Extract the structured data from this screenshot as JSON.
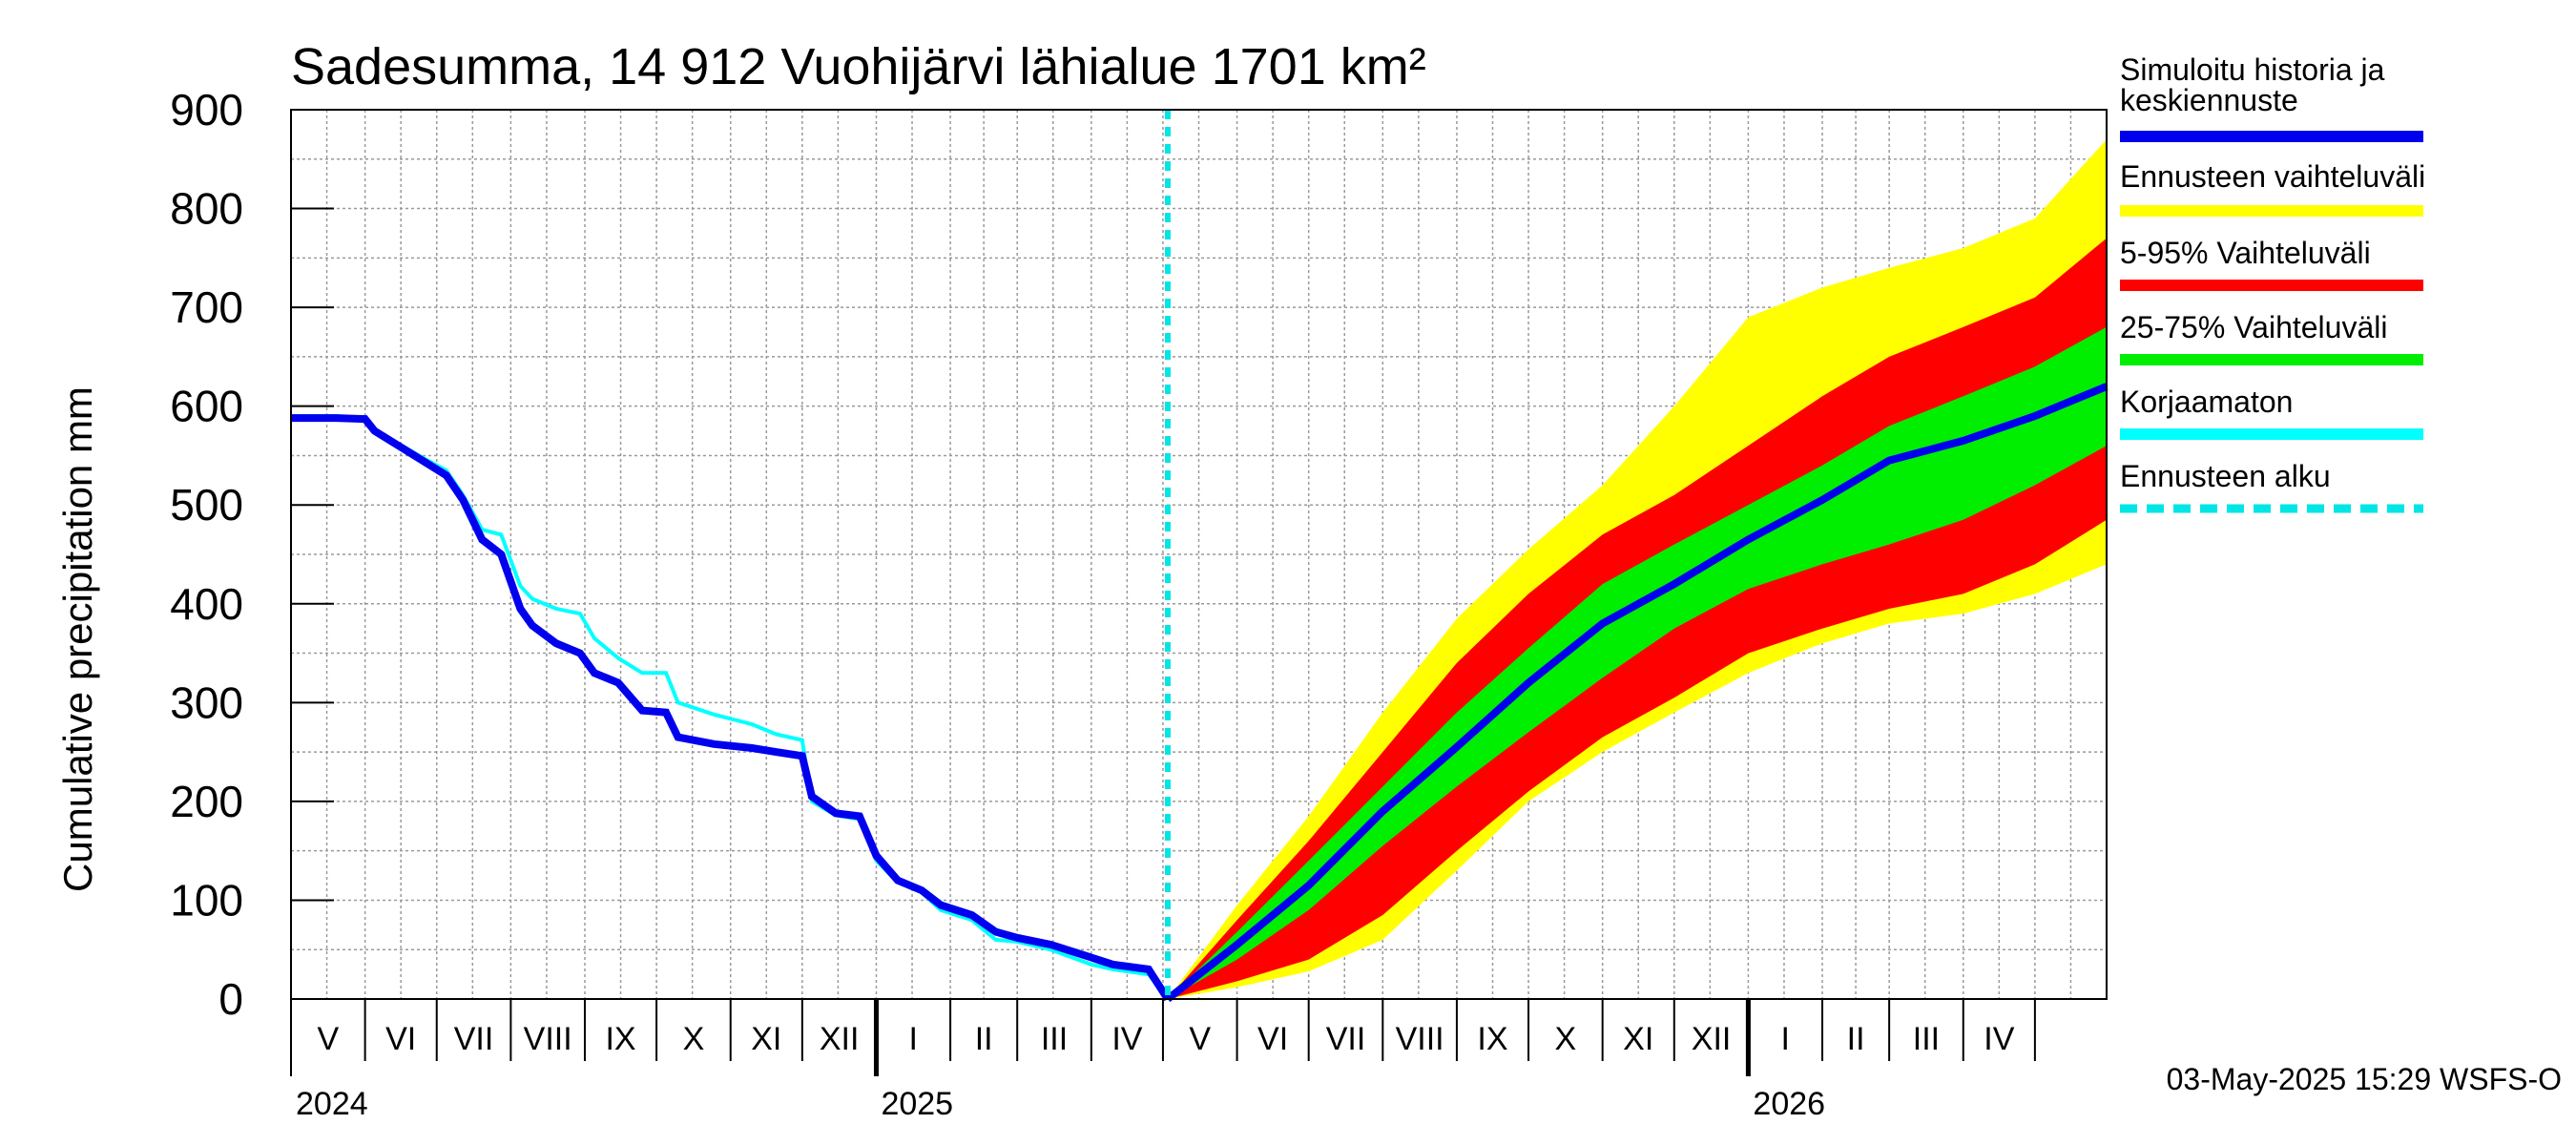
{
  "chart_data": {
    "type": "area",
    "title": "Sadesumma, 14 912 Vuohijärvi lähialue 1701 km²",
    "ylabel": "Cumulative precipitation   mm",
    "ylim": [
      0,
      900
    ],
    "yticks": [
      0,
      100,
      200,
      300,
      400,
      500,
      600,
      700,
      800,
      900
    ],
    "xlim": [
      "2024-05-01",
      "2026-05-31"
    ],
    "grid": true,
    "forecast_start": "2025-05-03",
    "month_labels": [
      "V",
      "VI",
      "VII",
      "VIII",
      "IX",
      "X",
      "XI",
      "XII",
      "I",
      "II",
      "III",
      "IV",
      "V",
      "VI",
      "VII",
      "VIII",
      "IX",
      "X",
      "XI",
      "XII",
      "I",
      "II",
      "III",
      "IV"
    ],
    "year_labels": [
      {
        "date": "2024-05-01",
        "label": "2024"
      },
      {
        "date": "2025-01-01",
        "label": "2025"
      },
      {
        "date": "2026-01-01",
        "label": "2026"
      }
    ],
    "legend": [
      {
        "label": "Simuloitu historia ja keskiennuste",
        "color": "#0000ee",
        "style": "solid"
      },
      {
        "label": "Ennusteen vaihteluväli",
        "color": "#ffff00",
        "style": "solid"
      },
      {
        "label": "5-95% Vaihteluväli",
        "color": "#ff0000",
        "style": "solid"
      },
      {
        "label": "25-75% Vaihteluväli",
        "color": "#00ee00",
        "style": "solid"
      },
      {
        "label": "Korjaamaton",
        "color": "#00ffff",
        "style": "solid"
      },
      {
        "label": "Ennusteen alku",
        "color": "#00e5e5",
        "style": "dashed"
      }
    ],
    "series_history": {
      "name": "Simuloitu historia ja keskiennuste",
      "points": [
        [
          "2024-05-01",
          588
        ],
        [
          "2024-05-20",
          588
        ],
        [
          "2024-06-01",
          587
        ],
        [
          "2024-06-05",
          575
        ],
        [
          "2024-06-15",
          560
        ],
        [
          "2024-06-25",
          545
        ],
        [
          "2024-07-05",
          530
        ],
        [
          "2024-07-12",
          505
        ],
        [
          "2024-07-20",
          465
        ],
        [
          "2024-07-28",
          450
        ],
        [
          "2024-08-05",
          395
        ],
        [
          "2024-08-10",
          378
        ],
        [
          "2024-08-20",
          360
        ],
        [
          "2024-08-30",
          350
        ],
        [
          "2024-09-05",
          330
        ],
        [
          "2024-09-15",
          320
        ],
        [
          "2024-09-25",
          292
        ],
        [
          "2024-10-05",
          290
        ],
        [
          "2024-10-10",
          265
        ],
        [
          "2024-10-25",
          258
        ],
        [
          "2024-11-10",
          254
        ],
        [
          "2024-11-20",
          250
        ],
        [
          "2024-12-01",
          246
        ],
        [
          "2024-12-05",
          205
        ],
        [
          "2024-12-15",
          188
        ],
        [
          "2024-12-25",
          185
        ],
        [
          "2025-01-01",
          145
        ],
        [
          "2025-01-10",
          120
        ],
        [
          "2025-01-20",
          110
        ],
        [
          "2025-01-28",
          95
        ],
        [
          "2025-02-10",
          85
        ],
        [
          "2025-02-20",
          68
        ],
        [
          "2025-03-01",
          62
        ],
        [
          "2025-03-15",
          55
        ],
        [
          "2025-04-01",
          42
        ],
        [
          "2025-04-10",
          35
        ],
        [
          "2025-04-25",
          30
        ],
        [
          "2025-05-03",
          0
        ]
      ]
    },
    "series_uncorrected": {
      "name": "Korjaamaton",
      "points": [
        [
          "2024-05-01",
          590
        ],
        [
          "2024-05-20",
          590
        ],
        [
          "2024-06-01",
          588
        ],
        [
          "2024-06-05",
          576
        ],
        [
          "2024-06-15",
          562
        ],
        [
          "2024-06-25",
          548
        ],
        [
          "2024-07-05",
          535
        ],
        [
          "2024-07-12",
          510
        ],
        [
          "2024-07-20",
          475
        ],
        [
          "2024-07-28",
          470
        ],
        [
          "2024-08-05",
          418
        ],
        [
          "2024-08-10",
          405
        ],
        [
          "2024-08-20",
          395
        ],
        [
          "2024-08-30",
          390
        ],
        [
          "2024-09-05",
          365
        ],
        [
          "2024-09-15",
          345
        ],
        [
          "2024-09-25",
          330
        ],
        [
          "2024-10-05",
          330
        ],
        [
          "2024-10-10",
          300
        ],
        [
          "2024-10-25",
          288
        ],
        [
          "2024-11-10",
          278
        ],
        [
          "2024-11-20",
          268
        ],
        [
          "2024-12-01",
          262
        ],
        [
          "2024-12-05",
          200
        ],
        [
          "2024-12-15",
          186
        ],
        [
          "2024-12-25",
          182
        ],
        [
          "2025-01-01",
          140
        ],
        [
          "2025-01-10",
          118
        ],
        [
          "2025-01-20",
          108
        ],
        [
          "2025-01-28",
          90
        ],
        [
          "2025-02-10",
          80
        ],
        [
          "2025-02-20",
          60
        ],
        [
          "2025-03-01",
          58
        ],
        [
          "2025-03-15",
          50
        ],
        [
          "2025-04-01",
          35
        ],
        [
          "2025-04-10",
          30
        ],
        [
          "2025-04-25",
          25
        ],
        [
          "2025-05-03",
          0
        ]
      ]
    },
    "forecast": {
      "dates": [
        "2025-05-03",
        "2025-06-01",
        "2025-07-01",
        "2025-08-01",
        "2025-09-01",
        "2025-10-01",
        "2025-11-01",
        "2025-12-01",
        "2026-01-01",
        "2026-02-01",
        "2026-03-01",
        "2026-04-01",
        "2026-05-01",
        "2026-05-31"
      ],
      "min": [
        0,
        12,
        28,
        60,
        130,
        200,
        250,
        290,
        330,
        360,
        380,
        390,
        410,
        440
      ],
      "p5": [
        0,
        18,
        40,
        85,
        150,
        210,
        265,
        305,
        350,
        375,
        395,
        410,
        440,
        485
      ],
      "p25": [
        0,
        40,
        90,
        155,
        215,
        270,
        325,
        375,
        415,
        440,
        460,
        485,
        520,
        560
      ],
      "median": [
        0,
        55,
        115,
        190,
        255,
        320,
        380,
        420,
        465,
        505,
        545,
        565,
        590,
        620
      ],
      "p75": [
        0,
        68,
        140,
        215,
        290,
        355,
        420,
        460,
        500,
        540,
        580,
        610,
        640,
        680
      ],
      "p95": [
        0,
        80,
        160,
        250,
        340,
        410,
        470,
        510,
        560,
        610,
        650,
        680,
        710,
        770
      ],
      "max": [
        0,
        95,
        185,
        290,
        385,
        455,
        520,
        600,
        690,
        720,
        740,
        760,
        790,
        870
      ]
    }
  },
  "footer": {
    "timestamp": "03-May-2025 15:29 WSFS-O"
  }
}
